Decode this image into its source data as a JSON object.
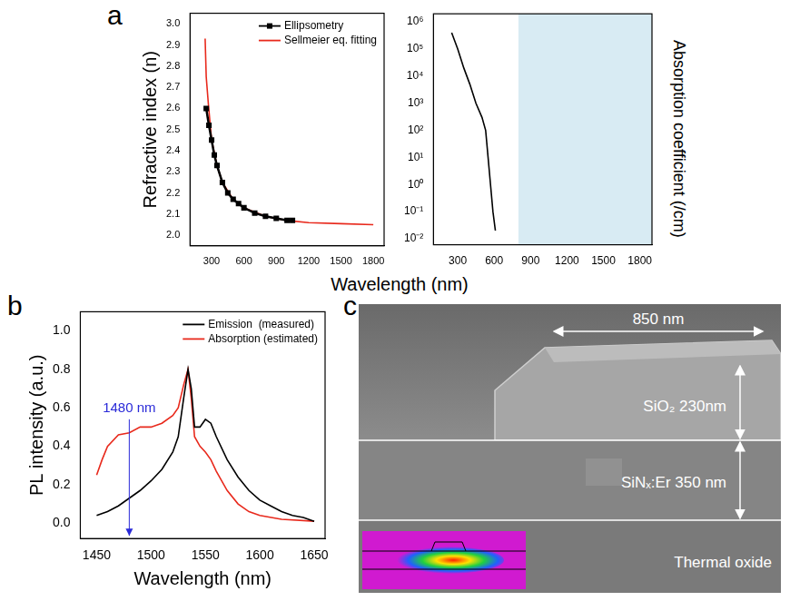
{
  "chart_data": [
    {
      "panel": "a",
      "type": "line",
      "xlabel": "Wavelength (nm)",
      "ylabel": "Refractive index (n)",
      "xlim": [
        100,
        1900
      ],
      "xticks": [
        300,
        600,
        900,
        1200,
        1500,
        1800
      ],
      "ylim": [
        1.95,
        3.05
      ],
      "yticks": [
        {
          "value": 2,
          "label": "2.0"
        },
        2.1,
        2.2,
        2.3,
        2.4,
        2.5,
        2.6,
        2.7,
        2.8,
        2.9,
        {
          "value": 3,
          "label": "3.0"
        }
      ],
      "grid": false,
      "legend": "upper right",
      "series": [
        {
          "name": "Ellipsometry",
          "color": "#000000",
          "marker": "square",
          "line_style": "solid",
          "x": [
            250,
            275,
            300,
            325,
            350,
            400,
            450,
            500,
            550,
            600,
            700,
            800,
            900,
            1000,
            1050
          ],
          "values": [
            2.6,
            2.52,
            2.45,
            2.38,
            2.33,
            2.25,
            2.2,
            2.17,
            2.15,
            2.13,
            2.105,
            2.09,
            2.08,
            2.07,
            2.07
          ]
        },
        {
          "name": "Sellmeier eq. fitting",
          "color": "#e8291c",
          "marker": "none",
          "line_style": "solid",
          "x": [
            240,
            250,
            270,
            300,
            350,
            400,
            500,
            600,
            800,
            1000,
            1200,
            1500,
            1800
          ],
          "values": [
            2.93,
            2.75,
            2.62,
            2.45,
            2.33,
            2.25,
            2.17,
            2.13,
            2.09,
            2.07,
            2.06,
            2.055,
            2.05
          ]
        }
      ]
    },
    {
      "panel": "a",
      "type": "line",
      "ylabel": "Absorption coefficient (/cm)",
      "log": "y",
      "xlim": [
        100,
        1900
      ],
      "xticks": [
        300,
        600,
        900,
        1200,
        1500,
        1800
      ],
      "ylim": [
        0.006,
        2000000
      ],
      "yticks": [
        {
          "value": 0.01,
          "label": "10⁻²"
        },
        {
          "value": 0.1,
          "label": "10⁻¹"
        },
        {
          "value": 1,
          "label": "10⁰"
        },
        {
          "value": 10,
          "label": "10¹"
        },
        {
          "value": 100,
          "label": "10²"
        },
        {
          "value": 1000,
          "label": "10³"
        },
        {
          "value": 10000,
          "label": "10⁴"
        },
        {
          "value": 100000,
          "label": "10⁵"
        },
        {
          "value": 1000000,
          "label": "10⁶"
        }
      ],
      "grid": false,
      "highlight_x": [
        800,
        1900
      ],
      "series": [
        {
          "color": "#000000",
          "marker": "none",
          "line_style": "solid",
          "x": [
            250,
            300,
            350,
            400,
            450,
            500,
            530,
            550,
            570,
            590,
            610
          ],
          "values": [
            400000,
            100000,
            20000,
            5000,
            1000,
            300,
            100,
            10,
            1,
            0.1,
            0.02
          ]
        }
      ]
    },
    {
      "panel": "b",
      "type": "line",
      "xlabel": "Wavelength (nm)",
      "ylabel": "PL intensity (a.u.)",
      "xlim": [
        1435,
        1660
      ],
      "xticks": [
        1450,
        1500,
        1550,
        1600,
        1650
      ],
      "ylim": [
        -0.08,
        1.1
      ],
      "yticks": [
        {
          "value": 0,
          "label": "0.0"
        },
        0.2,
        0.4,
        0.6,
        0.8,
        {
          "value": 1,
          "label": "1.0"
        }
      ],
      "grid": false,
      "legend": "upper right",
      "annotations": [
        {
          "text": "1480 nm",
          "x": 1480,
          "y": 0.55
        }
      ],
      "series": [
        {
          "name": "Emission  (measured)",
          "color": "#000000",
          "marker": "none",
          "line_style": "solid",
          "x": [
            1450,
            1460,
            1470,
            1480,
            1490,
            1500,
            1510,
            1520,
            1525,
            1530,
            1534,
            1537,
            1540,
            1545,
            1550,
            1555,
            1560,
            1570,
            1580,
            1590,
            1600,
            1610,
            1620,
            1630,
            1640,
            1650
          ],
          "values": [
            0.04,
            0.06,
            0.09,
            0.13,
            0.17,
            0.22,
            0.28,
            0.37,
            0.45,
            0.65,
            0.8,
            0.7,
            0.5,
            0.5,
            0.54,
            0.52,
            0.45,
            0.33,
            0.24,
            0.17,
            0.12,
            0.09,
            0.06,
            0.04,
            0.03,
            0.01
          ]
        },
        {
          "name": "Absorption (estimated)",
          "color": "#e8291c",
          "marker": "none",
          "line_style": "solid",
          "x": [
            1450,
            1455,
            1460,
            1470,
            1480,
            1490,
            1500,
            1510,
            1520,
            1525,
            1530,
            1534,
            1537,
            1540,
            1545,
            1550,
            1555,
            1560,
            1570,
            1580,
            1590,
            1600,
            1620,
            1650
          ],
          "values": [
            0.25,
            0.33,
            0.4,
            0.46,
            0.47,
            0.5,
            0.5,
            0.52,
            0.56,
            0.6,
            0.72,
            0.8,
            0.65,
            0.45,
            0.4,
            0.37,
            0.33,
            0.27,
            0.17,
            0.1,
            0.06,
            0.04,
            0.02,
            0.01
          ]
        }
      ]
    }
  ],
  "panel_c": {
    "panel": "c",
    "labels": {
      "width": "850 nm",
      "cap": "SiO₂ 230nm",
      "film": "SiNₓ:Er 350 nm",
      "substrate": "Thermal oxide"
    }
  }
}
